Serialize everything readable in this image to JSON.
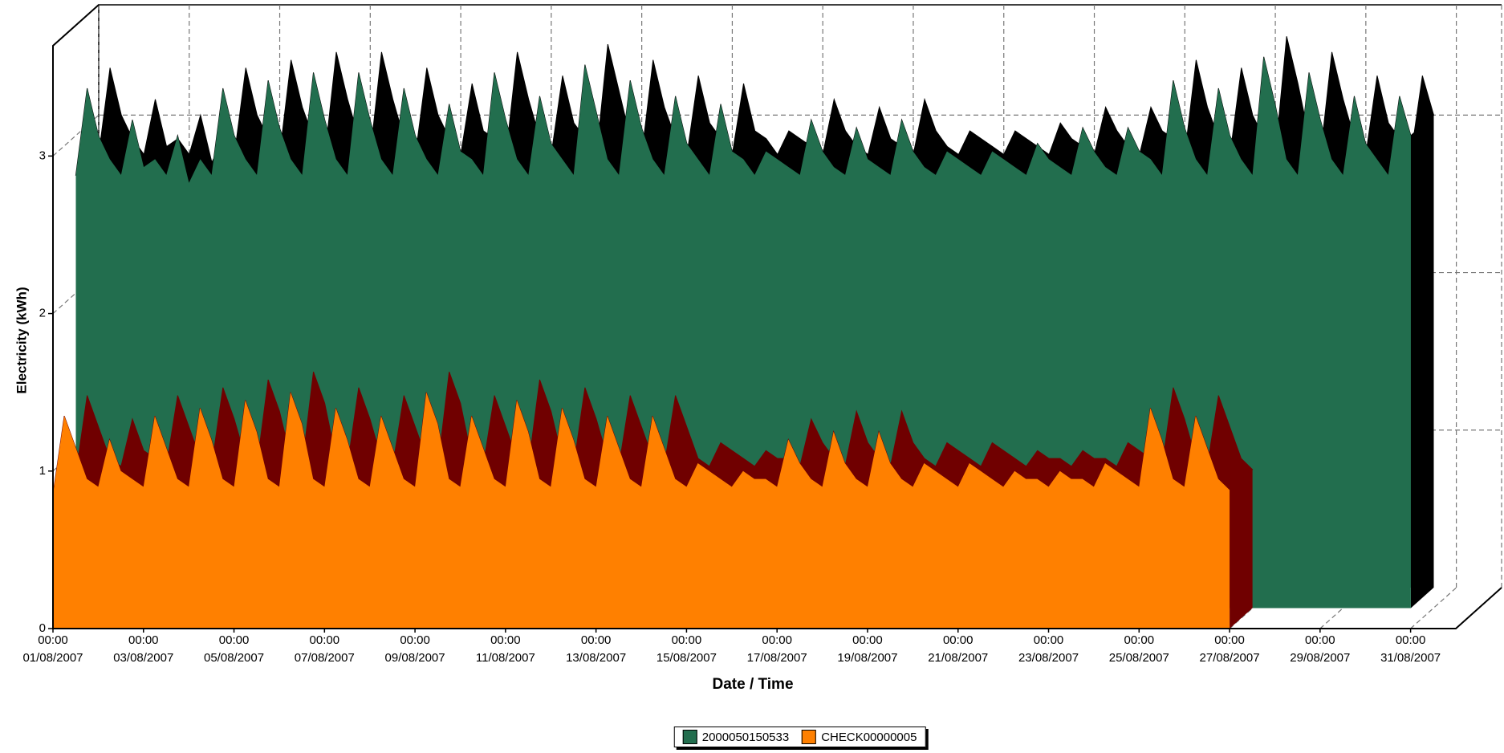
{
  "chart_data": {
    "type": "area3d",
    "x_label": "Date / Time",
    "y_label": "Electricity (kWh)",
    "x": [
      "01/08/2007 00:00",
      "01/08/2007 06:00",
      "01/08/2007 12:00",
      "01/08/2007 18:00",
      "02/08/2007 00:00",
      "02/08/2007 06:00",
      "02/08/2007 12:00",
      "02/08/2007 18:00",
      "03/08/2007 00:00",
      "03/08/2007 06:00",
      "03/08/2007 12:00",
      "03/08/2007 18:00",
      "04/08/2007 00:00",
      "04/08/2007 06:00",
      "04/08/2007 12:00",
      "04/08/2007 18:00",
      "05/08/2007 00:00",
      "05/08/2007 06:00",
      "05/08/2007 12:00",
      "05/08/2007 18:00",
      "06/08/2007 00:00",
      "06/08/2007 06:00",
      "06/08/2007 12:00",
      "06/08/2007 18:00",
      "07/08/2007 00:00",
      "07/08/2007 06:00",
      "07/08/2007 12:00",
      "07/08/2007 18:00",
      "08/08/2007 00:00",
      "08/08/2007 06:00",
      "08/08/2007 12:00",
      "08/08/2007 18:00",
      "09/08/2007 00:00",
      "09/08/2007 06:00",
      "09/08/2007 12:00",
      "09/08/2007 18:00",
      "10/08/2007 00:00",
      "10/08/2007 06:00",
      "10/08/2007 12:00",
      "10/08/2007 18:00",
      "11/08/2007 00:00",
      "11/08/2007 06:00",
      "11/08/2007 12:00",
      "11/08/2007 18:00",
      "12/08/2007 00:00",
      "12/08/2007 06:00",
      "12/08/2007 12:00",
      "12/08/2007 18:00",
      "13/08/2007 00:00",
      "13/08/2007 06:00",
      "13/08/2007 12:00",
      "13/08/2007 18:00",
      "14/08/2007 00:00",
      "14/08/2007 06:00",
      "14/08/2007 12:00",
      "14/08/2007 18:00",
      "15/08/2007 00:00",
      "15/08/2007 06:00",
      "15/08/2007 12:00",
      "15/08/2007 18:00",
      "16/08/2007 00:00",
      "16/08/2007 06:00",
      "16/08/2007 12:00",
      "16/08/2007 18:00",
      "17/08/2007 00:00",
      "17/08/2007 06:00",
      "17/08/2007 12:00",
      "17/08/2007 18:00",
      "18/08/2007 00:00",
      "18/08/2007 06:00",
      "18/08/2007 12:00",
      "18/08/2007 18:00",
      "19/08/2007 00:00",
      "19/08/2007 06:00",
      "19/08/2007 12:00",
      "19/08/2007 18:00",
      "20/08/2007 00:00",
      "20/08/2007 06:00",
      "20/08/2007 12:00",
      "20/08/2007 18:00",
      "21/08/2007 00:00",
      "21/08/2007 06:00",
      "21/08/2007 12:00",
      "21/08/2007 18:00",
      "22/08/2007 00:00",
      "22/08/2007 06:00",
      "22/08/2007 12:00",
      "22/08/2007 18:00",
      "23/08/2007 00:00",
      "23/08/2007 06:00",
      "23/08/2007 12:00",
      "23/08/2007 18:00",
      "24/08/2007 00:00",
      "24/08/2007 06:00",
      "24/08/2007 12:00",
      "24/08/2007 18:00",
      "25/08/2007 00:00",
      "25/08/2007 06:00",
      "25/08/2007 12:00",
      "25/08/2007 18:00",
      "26/08/2007 00:00",
      "26/08/2007 06:00",
      "26/08/2007 12:00",
      "26/08/2007 18:00",
      "27/08/2007 00:00",
      "27/08/2007 06:00",
      "27/08/2007 12:00",
      "27/08/2007 18:00",
      "28/08/2007 00:00",
      "28/08/2007 06:00",
      "28/08/2007 12:00",
      "28/08/2007 18:00",
      "29/08/2007 00:00",
      "29/08/2007 06:00",
      "29/08/2007 12:00",
      "29/08/2007 18:00",
      "30/08/2007 00:00",
      "30/08/2007 06:00",
      "30/08/2007 12:00"
    ],
    "series": [
      {
        "name": "2000050150533",
        "color": "#226e4e",
        "side_color": "#000000",
        "values": [
          2.75,
          3.3,
          3.0,
          2.85,
          2.75,
          3.1,
          2.8,
          2.85,
          2.75,
          3.0,
          2.7,
          2.85,
          2.75,
          3.3,
          3.0,
          2.85,
          2.75,
          3.35,
          3.05,
          2.85,
          2.75,
          3.4,
          3.1,
          2.85,
          2.75,
          3.4,
          3.1,
          2.85,
          2.75,
          3.3,
          3.0,
          2.85,
          2.75,
          3.2,
          2.9,
          2.85,
          2.75,
          3.4,
          3.1,
          2.85,
          2.75,
          3.25,
          2.95,
          2.85,
          2.75,
          3.45,
          3.15,
          2.85,
          2.75,
          3.35,
          3.05,
          2.85,
          2.75,
          3.25,
          2.95,
          2.85,
          2.75,
          3.2,
          2.9,
          2.85,
          2.75,
          2.9,
          2.85,
          2.8,
          2.75,
          3.1,
          2.9,
          2.8,
          2.75,
          3.05,
          2.85,
          2.8,
          2.75,
          3.1,
          2.9,
          2.8,
          2.75,
          2.9,
          2.85,
          2.8,
          2.75,
          2.9,
          2.85,
          2.8,
          2.75,
          2.95,
          2.85,
          2.8,
          2.75,
          3.05,
          2.9,
          2.8,
          2.75,
          3.05,
          2.9,
          2.85,
          2.75,
          3.35,
          3.05,
          2.85,
          2.75,
          3.3,
          3.0,
          2.85,
          2.75,
          3.5,
          3.2,
          2.85,
          2.75,
          3.4,
          3.1,
          2.85,
          2.75,
          3.25,
          2.95,
          2.85,
          2.75,
          3.25,
          3.0
        ]
      },
      {
        "name": "CHECK00000005",
        "color": "#ff8000",
        "side_color": "#700000",
        "values": [
          0.85,
          1.35,
          1.15,
          0.95,
          0.9,
          1.2,
          1.0,
          0.95,
          0.9,
          1.35,
          1.15,
          0.95,
          0.9,
          1.4,
          1.2,
          0.95,
          0.9,
          1.45,
          1.25,
          0.95,
          0.9,
          1.5,
          1.3,
          0.95,
          0.9,
          1.4,
          1.2,
          0.95,
          0.9,
          1.35,
          1.15,
          0.95,
          0.9,
          1.5,
          1.3,
          0.95,
          0.9,
          1.35,
          1.15,
          0.95,
          0.9,
          1.45,
          1.25,
          0.95,
          0.9,
          1.4,
          1.2,
          0.95,
          0.9,
          1.35,
          1.15,
          0.95,
          0.9,
          1.35,
          1.15,
          0.95,
          0.9,
          1.05,
          1.0,
          0.95,
          0.9,
          1.0,
          0.95,
          0.95,
          0.9,
          1.2,
          1.05,
          0.95,
          0.9,
          1.25,
          1.05,
          0.95,
          0.9,
          1.25,
          1.05,
          0.95,
          0.9,
          1.05,
          1.0,
          0.95,
          0.9,
          1.05,
          1.0,
          0.95,
          0.9,
          1.0,
          0.95,
          0.95,
          0.9,
          1.0,
          0.95,
          0.95,
          0.9,
          1.05,
          1.0,
          0.95,
          0.9,
          1.4,
          1.2,
          0.95,
          0.9,
          1.35,
          1.15,
          0.95,
          0.88,
          null,
          null,
          null,
          null,
          null,
          null,
          null,
          null,
          null,
          null,
          null,
          null,
          null,
          null
        ]
      }
    ],
    "xlim": [
      "01/08/2007 00:00",
      "01/09/2007 00:00"
    ],
    "xticks": [
      {
        "value": "01/08/2007 00:00",
        "label": "00:00\n01/08/2007"
      },
      {
        "value": "03/08/2007 00:00",
        "label": "00:00\n03/08/2007"
      },
      {
        "value": "05/08/2007 00:00",
        "label": "00:00\n05/08/2007"
      },
      {
        "value": "07/08/2007 00:00",
        "label": "00:00\n07/08/2007"
      },
      {
        "value": "09/08/2007 00:00",
        "label": "00:00\n09/08/2007"
      },
      {
        "value": "11/08/2007 00:00",
        "label": "00:00\n11/08/2007"
      },
      {
        "value": "13/08/2007 00:00",
        "label": "00:00\n13/08/2007"
      },
      {
        "value": "15/08/2007 00:00",
        "label": "00:00\n15/08/2007"
      },
      {
        "value": "17/08/2007 00:00",
        "label": "00:00\n17/08/2007"
      },
      {
        "value": "19/08/2007 00:00",
        "label": "00:00\n19/08/2007"
      },
      {
        "value": "21/08/2007 00:00",
        "label": "00:00\n21/08/2007"
      },
      {
        "value": "23/08/2007 00:00",
        "label": "00:00\n23/08/2007"
      },
      {
        "value": "25/08/2007 00:00",
        "label": "00:00\n25/08/2007"
      },
      {
        "value": "27/08/2007 00:00",
        "label": "00:00\n27/08/2007"
      },
      {
        "value": "29/08/2007 00:00",
        "label": "00:00\n29/08/2007"
      },
      {
        "value": "31/08/2007 00:00",
        "label": "00:00\n31/08/2007"
      }
    ],
    "ylim": [
      0,
      3.7
    ],
    "yticks": [
      0,
      1,
      2,
      3
    ],
    "grid": true,
    "legend": "bottom"
  }
}
